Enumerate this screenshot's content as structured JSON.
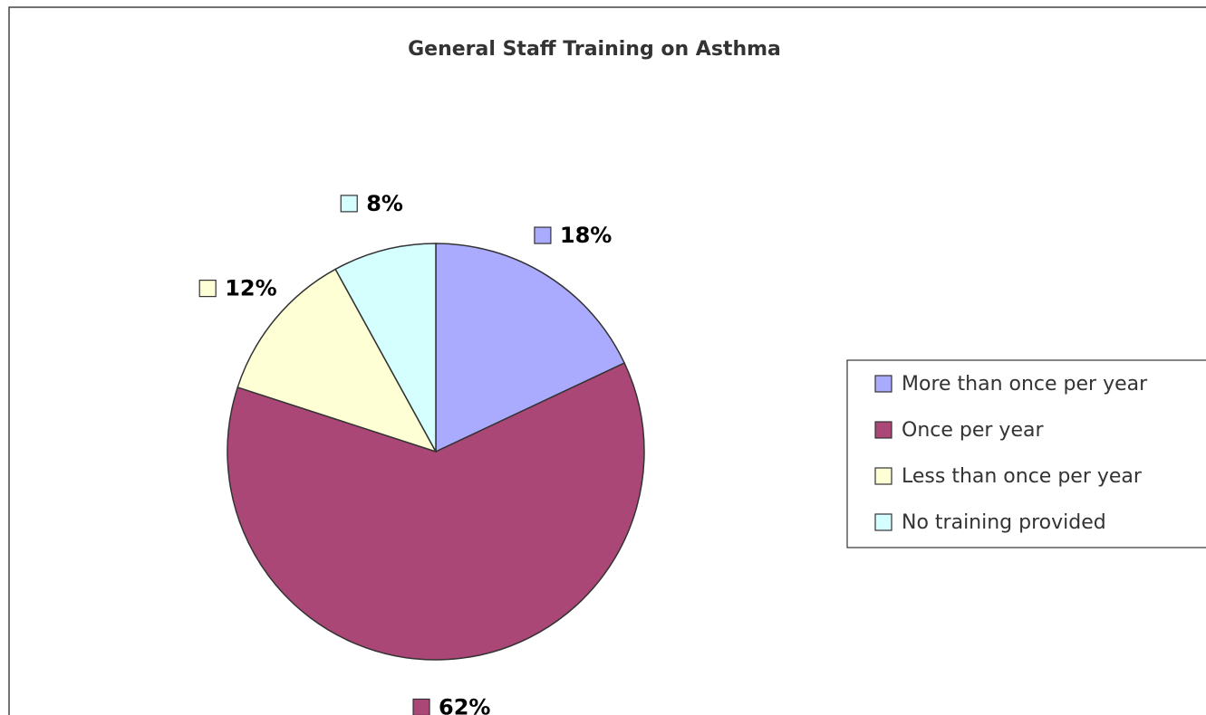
{
  "chart_data": {
    "type": "pie",
    "title": "General Staff Training on Asthma",
    "categories": [
      "More than once per year",
      "Once per year",
      "Less than once per year",
      "No training provided"
    ],
    "values": [
      18,
      62,
      12,
      8
    ],
    "value_labels": [
      "18%",
      "62%",
      "12%",
      "8%"
    ],
    "colors": [
      "#aaaaff",
      "#aa4777",
      "#ffffd5",
      "#d5ffff"
    ],
    "legend": "right"
  }
}
